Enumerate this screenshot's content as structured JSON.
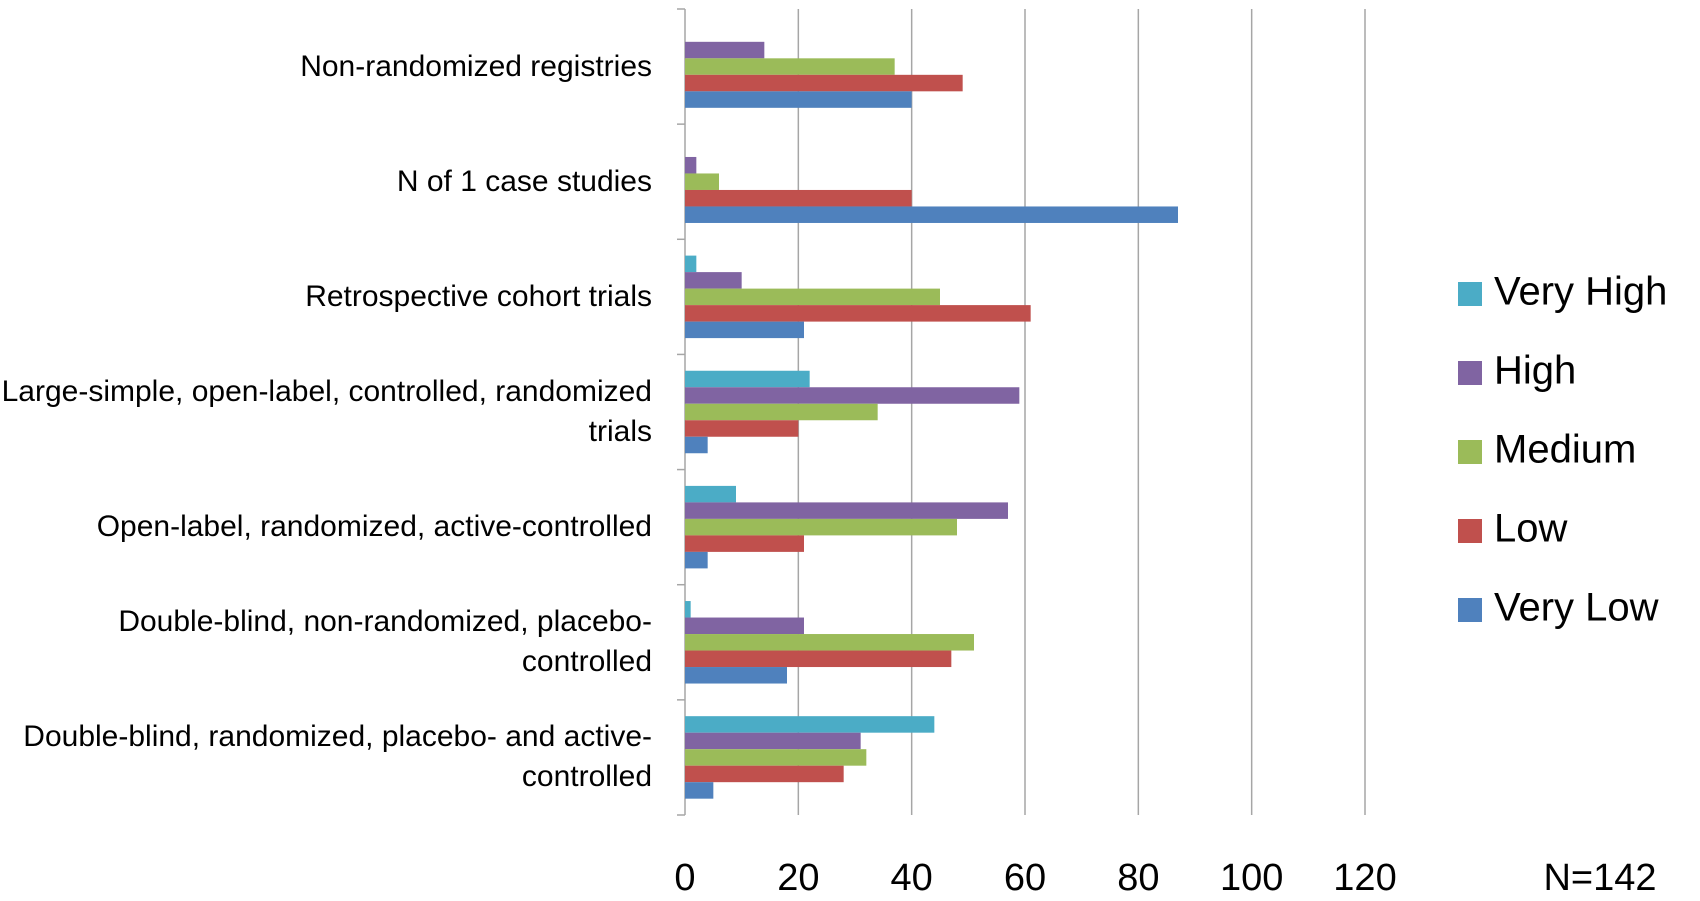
{
  "chart_data": {
    "type": "hbar",
    "categories": [
      "Non-randomized registries",
      "N of 1 case studies",
      "Retrospective cohort trials",
      "Large-simple, open-label, controlled, randomized trials",
      "Open-label, randomized, active-controlled",
      "Double-blind, non-randomized, placebo-controlled",
      "Double-blind, randomized, placebo- and active-controlled"
    ],
    "series": [
      {
        "name": "Very High",
        "color": "#4bacc6",
        "values": [
          0,
          0,
          2,
          22,
          9,
          1,
          44
        ]
      },
      {
        "name": "High",
        "color": "#8064a2",
        "values": [
          14,
          2,
          10,
          59,
          57,
          21,
          31
        ]
      },
      {
        "name": "Medium",
        "color": "#9bbb59",
        "values": [
          37,
          6,
          45,
          34,
          48,
          51,
          32
        ]
      },
      {
        "name": "Low",
        "color": "#c0504d",
        "values": [
          49,
          40,
          61,
          20,
          21,
          47,
          28
        ]
      },
      {
        "name": "Very Low",
        "color": "#4f81bd",
        "values": [
          40,
          87,
          21,
          4,
          4,
          18,
          5
        ]
      }
    ],
    "xlim": [
      0,
      120
    ],
    "xticks": [
      0,
      20,
      40,
      60,
      80,
      100,
      120
    ],
    "grid": true,
    "annotation": "N=142"
  }
}
